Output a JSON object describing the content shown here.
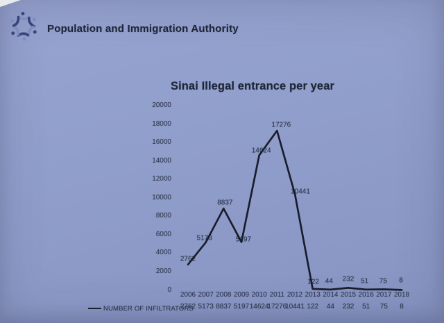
{
  "header": {
    "org_name": "Population and Immigration Authority",
    "logo_icon": "star-of-people-logo"
  },
  "chart_data": {
    "type": "line",
    "title": "Sinai Illegal entrance per year",
    "categories": [
      "2006",
      "2007",
      "2008",
      "2009",
      "2010",
      "2011",
      "2012",
      "2013",
      "2014",
      "2015",
      "2016",
      "2017",
      "2018"
    ],
    "series": [
      {
        "name": "NUMBER OF INFILTRATORS",
        "values": [
          2762,
          5173,
          8837,
          5197,
          14624,
          17276,
          10441,
          122,
          44,
          232,
          51,
          75,
          8
        ]
      }
    ],
    "xlabel": "",
    "ylabel": "",
    "ylim": [
      0,
      20000
    ],
    "y_ticks": [
      "20000",
      "18000",
      "16000",
      "14000",
      "12000",
      "10000",
      "8000",
      "6000",
      "4000",
      "2000",
      "0"
    ],
    "grid": false,
    "legend_position": "bottom-left",
    "data_labels_visible": true,
    "table_row_visible": true,
    "line_color": "#191d2b"
  },
  "colors": {
    "background": "#909ecb",
    "title_text": "#1e2536",
    "axis_text": "#333b52",
    "logo_dark_blue": "#36457c",
    "logo_light_blue": "#7e8ebf"
  }
}
